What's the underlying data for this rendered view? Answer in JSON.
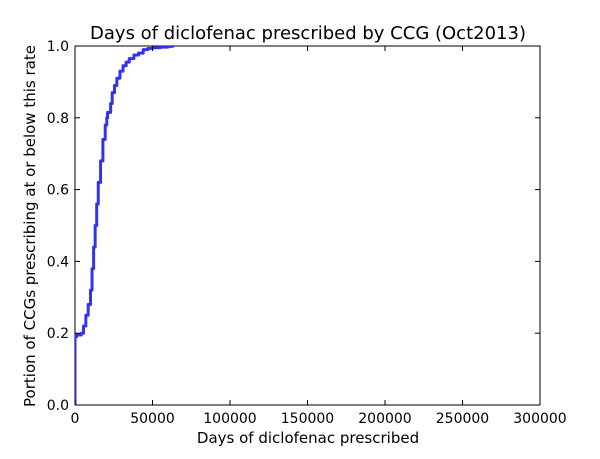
{
  "chart_data": {
    "type": "line",
    "title": "Days of diclofenac prescribed by CCG (Oct2013)",
    "xlabel": "Days of diclofenac prescribed",
    "ylabel": "Portion of CCGs prescribing at or below this rate",
    "xlim": [
      0,
      300000
    ],
    "ylim": [
      0,
      1.0
    ],
    "xticks": [
      0,
      50000,
      100000,
      150000,
      200000,
      250000,
      300000
    ],
    "xtick_labels": [
      "0",
      "50000",
      "100000",
      "150000",
      "200000",
      "250000",
      "300000"
    ],
    "yticks": [
      0.0,
      0.2,
      0.4,
      0.6,
      0.8,
      1.0
    ],
    "ytick_labels": [
      "0.0",
      "0.2",
      "0.4",
      "0.6",
      "0.8",
      "1.0"
    ],
    "grid": false,
    "legend": "none",
    "series": [
      {
        "color": "#3333ee",
        "x": [
          0,
          0,
          1000,
          4000,
          5500,
          7000,
          8500,
          10000,
          11000,
          12000,
          13000,
          14000,
          15000,
          16500,
          18000,
          19500,
          20500,
          21000,
          23000,
          24000,
          25500,
          27000,
          29000,
          31000,
          33000,
          35000,
          38000,
          41000,
          44000,
          47000,
          50000,
          55000,
          60000,
          63000
        ],
        "y": [
          0.0,
          0.19,
          0.195,
          0.2,
          0.22,
          0.25,
          0.28,
          0.32,
          0.38,
          0.44,
          0.5,
          0.56,
          0.62,
          0.68,
          0.74,
          0.78,
          0.8,
          0.815,
          0.84,
          0.87,
          0.89,
          0.91,
          0.93,
          0.945,
          0.955,
          0.965,
          0.975,
          0.98,
          0.99,
          0.993,
          0.995,
          0.997,
          0.999,
          1.0
        ]
      }
    ]
  }
}
